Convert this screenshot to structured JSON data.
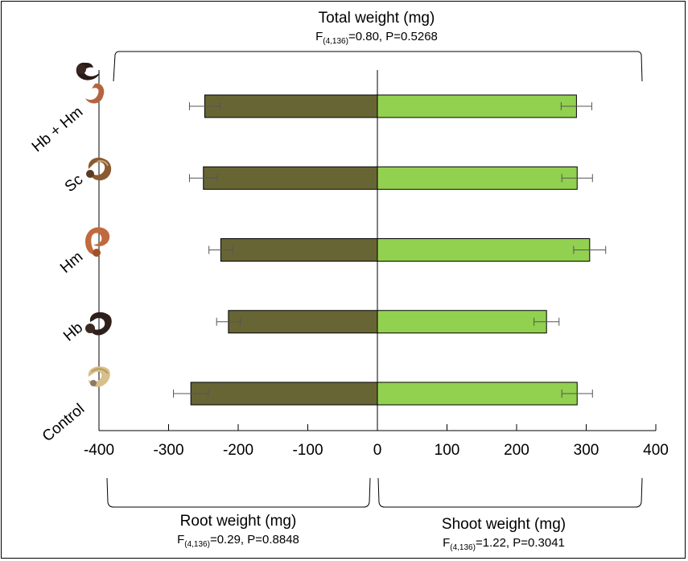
{
  "chart_data": {
    "type": "bar",
    "orientation": "horizontal-diverging",
    "categories": [
      "Control",
      "Hb",
      "Hm",
      "Sc",
      "Hb + Hm"
    ],
    "series": [
      {
        "name": "Root weight (mg)",
        "values": [
          -268,
          -214,
          -225,
          -250,
          -248
        ],
        "error": [
          25,
          17,
          17,
          20,
          22
        ],
        "color": "#686535"
      },
      {
        "name": "Shoot weight (mg)",
        "values": [
          287,
          243,
          305,
          287,
          286
        ],
        "error": [
          22,
          18,
          23,
          22,
          22
        ],
        "color": "#92d050"
      }
    ],
    "xlim": [
      -400,
      400
    ],
    "x_ticks": [
      "-400",
      "-300",
      "-200",
      "-100",
      "0",
      "100",
      "200",
      "300",
      "400"
    ],
    "grid": false,
    "labels": {
      "top_title": "Total weight (mg)",
      "top_stat": {
        "pre": "F",
        "sub": "(4,136)",
        "post": "=0.80, P=0.5268"
      },
      "left_title": "Root weight (mg)",
      "left_stat": {
        "pre": "F",
        "sub": "(4,136)",
        "post": "=0.29, P=0.8848"
      },
      "right_title": "Shoot weight (mg)",
      "right_stat": {
        "pre": "F",
        "sub": "(4,136)",
        "post": "=1.22, P=0.3041"
      }
    },
    "icons": [
      "control-grub-icon",
      "hb-grub-icon",
      "hm-grub-icon",
      "sc-grub-icon",
      "hb-hm-grub-icon"
    ]
  }
}
